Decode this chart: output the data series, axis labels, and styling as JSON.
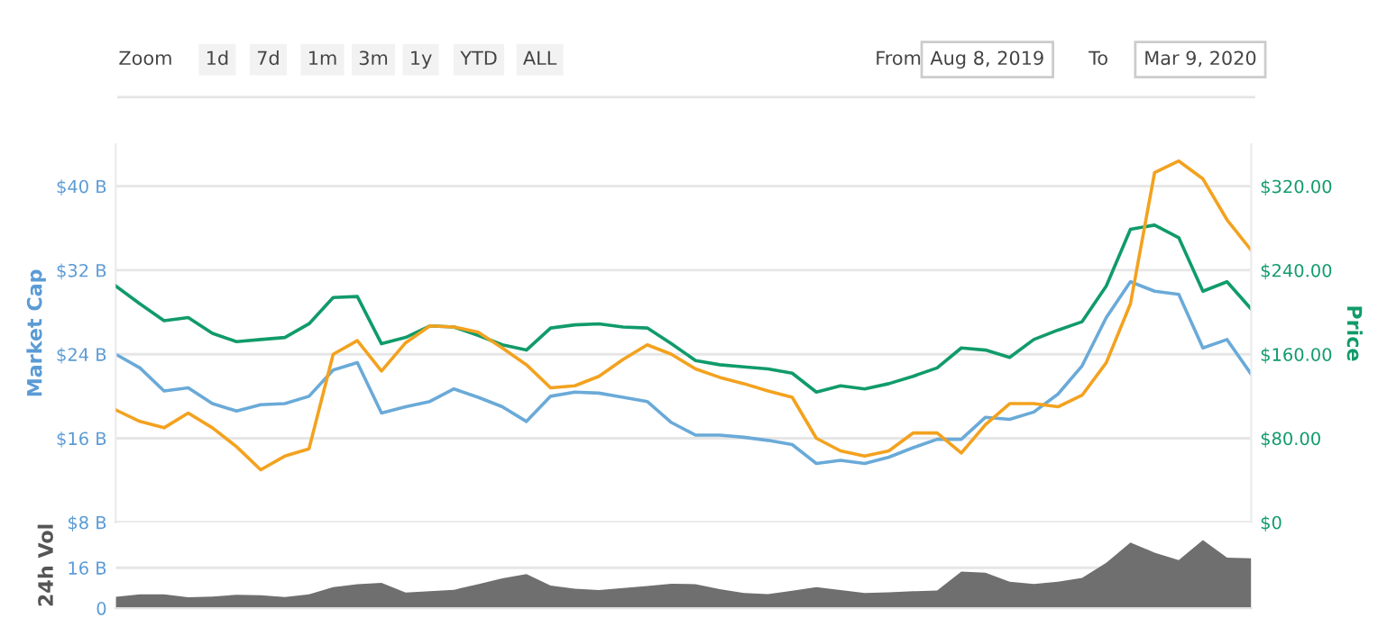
{
  "chart_data": [
    {
      "type": "line",
      "ylabel": "Market Cap",
      "y2label": "Price",
      "annotations": [
        "Zoom",
        "1d",
        "7d",
        "1m",
        "3m",
        "1y",
        "YTD",
        "ALL",
        "From",
        "Aug 8, 2019",
        "To",
        "Mar 9, 2020"
      ],
      "categories": [
        null,
        null,
        null,
        null,
        null,
        null,
        null,
        null,
        null,
        null,
        null,
        null,
        null,
        null,
        null,
        null,
        null,
        null,
        null,
        null,
        null,
        null,
        null,
        null,
        null,
        null,
        null,
        null,
        null,
        null,
        null,
        null,
        null,
        null,
        null,
        null,
        null,
        null,
        null,
        null,
        null,
        null,
        null,
        null,
        null,
        null,
        null,
        null
      ],
      "ylim": [
        8,
        44
      ],
      "yticks": [
        {
          "value": 8,
          "label": "$8 B"
        },
        {
          "value": 16,
          "label": "$16 B"
        },
        {
          "value": 24,
          "label": "$24 B"
        },
        {
          "value": 32,
          "label": "$32 B"
        },
        {
          "value": 40,
          "label": "$40 B"
        }
      ],
      "y2lim": [
        0,
        360
      ],
      "y2ticks": [
        {
          "value": 0,
          "label": "$0"
        },
        {
          "value": 80,
          "label": "$80.00"
        },
        {
          "value": 160,
          "label": "$160.00"
        },
        {
          "value": 240,
          "label": "$240.00"
        },
        {
          "value": 320,
          "label": "$320.00"
        }
      ],
      "grid": "y",
      "tick_labels": "y",
      "series": [
        {
          "color": "#6aaad8",
          "values": [
            24.0,
            22.7,
            20.5,
            20.8,
            19.3,
            18.6,
            19.2,
            19.3,
            20.0,
            22.5,
            23.2,
            18.4,
            19.0,
            19.5,
            20.7,
            19.9,
            19.0,
            17.6,
            20.0,
            20.4,
            20.3,
            19.9,
            19.5,
            17.5,
            16.3,
            16.3,
            16.1,
            15.8,
            15.4,
            13.6,
            13.9,
            13.6,
            14.2,
            15.1,
            15.9,
            15.9,
            18.0,
            17.8,
            18.5,
            20.2,
            22.9,
            27.5,
            30.9,
            30.0,
            29.7,
            24.6,
            25.4,
            22.1
          ]
        },
        {
          "color": "#109b6a",
          "axis": "y2",
          "values": [
            225,
            208,
            192,
            195,
            180,
            172,
            174,
            176,
            189,
            214,
            215,
            170,
            176,
            187,
            186,
            178,
            169,
            164,
            185,
            188,
            189,
            186,
            185,
            170,
            154,
            150,
            148,
            146,
            142,
            124,
            130,
            127,
            132,
            139,
            147,
            166,
            164,
            157,
            174,
            183,
            191,
            225,
            279,
            283,
            271,
            220,
            229,
            203
          ]
        },
        {
          "color": "#f3a21f",
          "axis": "y2",
          "values": [
            107,
            96,
            90,
            104,
            90,
            72,
            50,
            63,
            70,
            160,
            173,
            144,
            171,
            187,
            186,
            181,
            166,
            150,
            128,
            130,
            139,
            155,
            169,
            160,
            146,
            138,
            132,
            125,
            119,
            80,
            68,
            63,
            68,
            85,
            85,
            66,
            93,
            113,
            113,
            110,
            121,
            152,
            208,
            333,
            344,
            327,
            288,
            259
          ]
        }
      ]
    },
    {
      "type": "area",
      "ylabel": "24h Vol",
      "categories": [
        null,
        null,
        null,
        null,
        null,
        null,
        null,
        null,
        null,
        null,
        null,
        null,
        null,
        null,
        null,
        null,
        null,
        null,
        null,
        null,
        null,
        null,
        null,
        null,
        null,
        null,
        null,
        null,
        null,
        null,
        null,
        null,
        null,
        null,
        null,
        null,
        null,
        null,
        null,
        null,
        null,
        null,
        null,
        null,
        null,
        null,
        null,
        null
      ],
      "ylim": [
        0,
        34
      ],
      "yticks": [
        {
          "value": 0,
          "label": "0"
        },
        {
          "value": 16,
          "label": "16 B"
        }
      ],
      "grid": "y",
      "tick_labels": "y",
      "series": [
        {
          "color": "#6f6f6f",
          "values": [
            4.5,
            5.5,
            5.5,
            4.3,
            4.6,
            5.3,
            5.1,
            4.4,
            5.5,
            8.3,
            9.5,
            10,
            6.2,
            6.7,
            7.3,
            9.5,
            11.8,
            13.5,
            9,
            7.7,
            7.2,
            8,
            8.8,
            9.7,
            9.5,
            7.5,
            6,
            5.6,
            6.9,
            8.3,
            7.2,
            6,
            6.3,
            6.7,
            7,
            14.5,
            14,
            10.5,
            9.6,
            10.5,
            12,
            18,
            26,
            22,
            19,
            27,
            20,
            19.7
          ]
        }
      ]
    }
  ]
}
